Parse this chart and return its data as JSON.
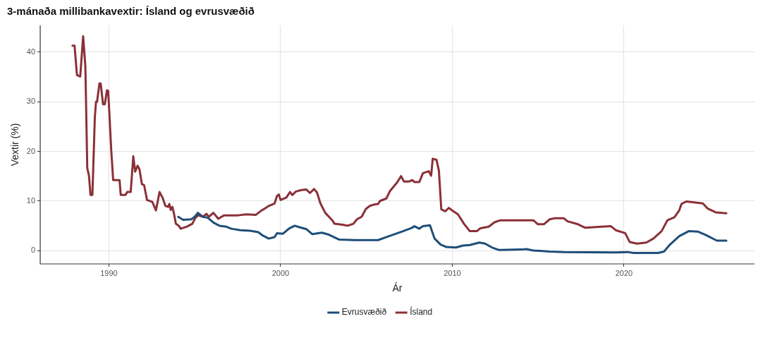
{
  "chart_data": {
    "type": "line",
    "title": "3-mánaða millibankavextir: Ísland og evrusvæðið",
    "xlabel": "Ár",
    "ylabel": "Vextir (%)",
    "xlim": [
      1986,
      2027.6
    ],
    "xticks": [
      1990,
      2000,
      2010,
      2020
    ],
    "ylim": [
      -2.7,
      45.4
    ],
    "yticks": [
      0,
      10,
      20,
      30,
      40
    ],
    "grid": true,
    "legend": "bottom",
    "line_style": "solid",
    "marker": "none",
    "series": [
      {
        "name": "Evrusvæðið",
        "color": "#1f4e79",
        "x": [
          1994.04,
          1994.32,
          1994.8,
          1995.0,
          1995.18,
          1995.48,
          1995.76,
          1996.1,
          1996.44,
          1996.85,
          1997.13,
          1997.67,
          1998.22,
          1998.7,
          1998.97,
          1999.31,
          1999.65,
          1999.79,
          2000.14,
          2000.48,
          2000.82,
          2001.1,
          2001.51,
          2001.85,
          2002.4,
          2002.81,
          2003.42,
          2004.31,
          2005.68,
          2006.23,
          2007.05,
          2007.6,
          2007.8,
          2008.08,
          2008.29,
          2008.7,
          2008.97,
          2009.32,
          2009.66,
          2010.21,
          2010.62,
          2011.02,
          2011.57,
          2011.91,
          2012.32,
          2012.73,
          2014.03,
          2014.31,
          2014.72,
          2015.68,
          2016.5,
          2019.52,
          2020.21,
          2020.55,
          2021.99,
          2022.33,
          2022.68,
          2023.22,
          2023.77,
          2024.32,
          2024.73,
          2025.41,
          2025.96
        ],
        "values": [
          6.8,
          6.2,
          6.3,
          6.8,
          7.6,
          6.8,
          6.6,
          5.6,
          5.0,
          4.8,
          4.4,
          4.1,
          4.0,
          3.7,
          3.0,
          2.4,
          2.7,
          3.5,
          3.4,
          4.4,
          5.0,
          4.7,
          4.3,
          3.3,
          3.6,
          3.2,
          2.2,
          2.1,
          2.1,
          2.8,
          3.8,
          4.5,
          4.9,
          4.4,
          4.9,
          5.1,
          2.4,
          1.2,
          0.7,
          0.6,
          1.0,
          1.1,
          1.6,
          1.4,
          0.6,
          0.1,
          0.2,
          0.3,
          0.0,
          -0.2,
          -0.3,
          -0.4,
          -0.3,
          -0.5,
          -0.5,
          -0.2,
          1.2,
          2.9,
          3.9,
          3.8,
          3.2,
          2.0,
          2.0
        ]
      },
      {
        "name": "Ísland",
        "color": "#8b3038",
        "x": [
          1987.88,
          1988.0,
          1988.14,
          1988.33,
          1988.5,
          1988.63,
          1988.74,
          1988.84,
          1988.93,
          1989.04,
          1989.18,
          1989.25,
          1989.31,
          1989.45,
          1989.52,
          1989.66,
          1989.76,
          1989.89,
          1989.96,
          1990.14,
          1990.25,
          1990.62,
          1990.69,
          1990.96,
          1991.07,
          1991.27,
          1991.42,
          1991.53,
          1991.67,
          1991.78,
          1991.92,
          1992.05,
          1992.22,
          1992.53,
          1992.74,
          1992.95,
          1993.12,
          1993.29,
          1993.45,
          1993.52,
          1993.6,
          1993.7,
          1993.81,
          1993.9,
          1994.07,
          1994.18,
          1994.52,
          1994.86,
          1995.04,
          1995.2,
          1995.48,
          1995.68,
          1995.82,
          1996.09,
          1996.37,
          1996.71,
          1997.53,
          1998.01,
          1998.56,
          1998.9,
          1999.1,
          1999.31,
          1999.65,
          1999.79,
          1999.9,
          2000.0,
          2000.34,
          2000.55,
          2000.68,
          2000.89,
          2001.23,
          2001.5,
          2001.71,
          2001.95,
          2002.12,
          2002.32,
          2002.6,
          2003.01,
          2003.14,
          2003.62,
          2003.9,
          2004.24,
          2004.45,
          2004.72,
          2004.97,
          2005.2,
          2005.48,
          2005.68,
          2005.79,
          2006.16,
          2006.37,
          2006.78,
          2007.02,
          2007.19,
          2007.46,
          2007.67,
          2007.8,
          2008.08,
          2008.29,
          2008.63,
          2008.77,
          2008.86,
          2009.08,
          2009.22,
          2009.36,
          2009.59,
          2009.8,
          2009.95,
          2010.33,
          2010.68,
          2011.02,
          2011.43,
          2011.64,
          2012.12,
          2012.46,
          2012.8,
          2014.17,
          2014.72,
          2014.99,
          2015.33,
          2015.68,
          2015.95,
          2016.5,
          2016.71,
          2017.32,
          2017.73,
          2018.69,
          2019.24,
          2019.52,
          2020.07,
          2020.34,
          2020.75,
          2021.3,
          2021.71,
          2022.19,
          2022.53,
          2022.94,
          2023.22,
          2023.35,
          2023.63,
          2024.59,
          2024.86,
          2025.34,
          2025.96
        ],
        "values": [
          41.3,
          41.3,
          35.4,
          35.1,
          43.2,
          37.1,
          16.6,
          15.1,
          11.2,
          11.2,
          26.8,
          30.0,
          30.0,
          33.7,
          33.7,
          29.5,
          29.5,
          32.3,
          32.2,
          20.0,
          14.2,
          14.2,
          11.2,
          11.2,
          11.8,
          11.8,
          19.0,
          15.9,
          17.1,
          16.4,
          13.4,
          13.2,
          10.2,
          9.8,
          8.1,
          11.8,
          10.7,
          9.0,
          8.8,
          9.4,
          8.2,
          8.8,
          7.1,
          5.4,
          5.0,
          4.4,
          4.8,
          5.4,
          6.6,
          7.1,
          6.8,
          7.4,
          6.8,
          7.6,
          6.4,
          7.1,
          7.1,
          7.3,
          7.2,
          8.1,
          8.5,
          9.0,
          9.5,
          11.0,
          11.3,
          10.2,
          10.7,
          11.8,
          11.2,
          11.9,
          12.2,
          12.3,
          11.6,
          12.4,
          11.7,
          9.5,
          7.6,
          6.1,
          5.4,
          5.2,
          5.0,
          5.4,
          6.3,
          6.8,
          8.4,
          9.0,
          9.3,
          9.4,
          10.0,
          10.5,
          12.0,
          13.7,
          15.0,
          13.9,
          13.9,
          14.2,
          13.8,
          13.8,
          15.6,
          16.0,
          15.1,
          18.5,
          18.3,
          16.1,
          8.3,
          7.9,
          8.6,
          8.2,
          7.3,
          5.4,
          3.9,
          3.9,
          4.5,
          4.8,
          5.7,
          6.1,
          6.1,
          6.1,
          5.3,
          5.3,
          6.3,
          6.5,
          6.5,
          5.9,
          5.3,
          4.6,
          4.8,
          4.9,
          4.1,
          3.5,
          1.7,
          1.4,
          1.6,
          2.4,
          3.9,
          6.1,
          6.7,
          8.1,
          9.4,
          9.9,
          9.5,
          8.5,
          7.7,
          7.5
        ]
      }
    ]
  }
}
